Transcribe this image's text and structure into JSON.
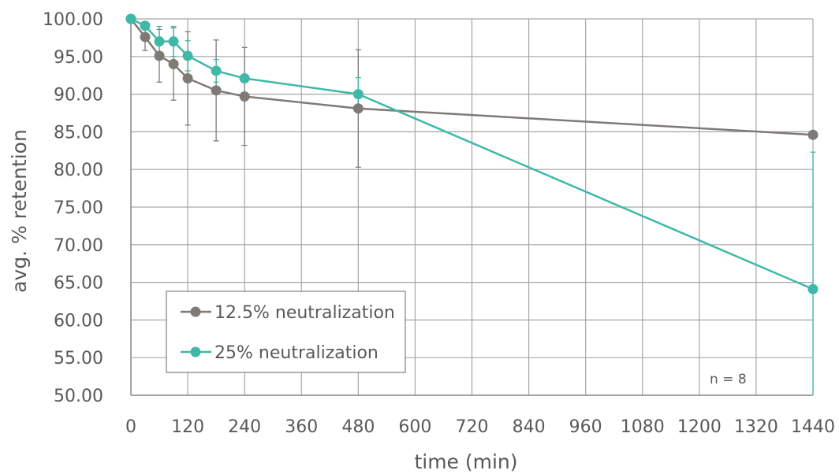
{
  "chart_data": {
    "type": "line",
    "xlabel": "time (min)",
    "ylabel": "avg. % retention",
    "xlim": [
      0,
      1440
    ],
    "ylim": [
      50,
      100
    ],
    "x_ticks": [
      0,
      120,
      240,
      360,
      480,
      600,
      720,
      840,
      960,
      1080,
      1200,
      1320,
      1440
    ],
    "x_tick_labels": [
      "0",
      "120",
      "240",
      "360",
      "480",
      "600",
      "720",
      "840",
      "960",
      "1080",
      "1200",
      "1320",
      "1440"
    ],
    "y_ticks": [
      50,
      55,
      60,
      65,
      70,
      75,
      80,
      85,
      90,
      95,
      100
    ],
    "y_tick_labels": [
      "50.00",
      "55.00",
      "60.00",
      "65.00",
      "70.00",
      "75.00",
      "80.00",
      "85.00",
      "90.00",
      "95.00",
      "100.00"
    ],
    "grid": true,
    "legend_position": "bottom-left",
    "annotation": "n = 8",
    "series": [
      {
        "name": "12.5% neutralization",
        "color": "#7f7a76",
        "x": [
          0,
          30,
          60,
          90,
          120,
          180,
          240,
          480,
          1440
        ],
        "y": [
          100,
          97.6,
          95.1,
          94.0,
          92.1,
          90.5,
          89.7,
          88.1,
          84.6
        ],
        "error": [
          0,
          1.8,
          3.5,
          4.8,
          6.2,
          6.7,
          6.5,
          7.8,
          0.5
        ]
      },
      {
        "name": "25% neutralization",
        "color": "#3fb8a8",
        "x": [
          0,
          30,
          60,
          90,
          120,
          180,
          240,
          480,
          1440
        ],
        "y": [
          100,
          99.1,
          97.0,
          97.0,
          95.1,
          93.1,
          92.1,
          90.0,
          64.1
        ],
        "error": [
          0,
          0.4,
          2.0,
          2.0,
          2.0,
          1.5,
          0.5,
          2.2,
          18.2
        ]
      }
    ]
  }
}
